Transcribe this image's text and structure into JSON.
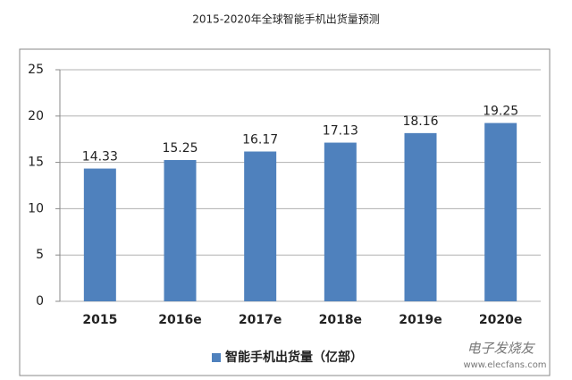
{
  "chart_data": {
    "type": "bar",
    "title": "2015-2020年全球智能手机出货量预测",
    "categories": [
      "2015",
      "2016e",
      "2017e",
      "2018e",
      "2019e",
      "2020e"
    ],
    "series": [
      {
        "name": "智能手机出货量（亿部）",
        "color": "#4f81bd",
        "values": [
          14.33,
          15.25,
          16.17,
          17.13,
          18.16,
          19.25
        ]
      }
    ],
    "ylim": [
      0,
      25
    ],
    "yticks": [
      0,
      5,
      10,
      15,
      20,
      25
    ],
    "grid": true,
    "legend": "bottom",
    "watermark": [
      "电子发烧友",
      "www.elecfans.com"
    ]
  }
}
